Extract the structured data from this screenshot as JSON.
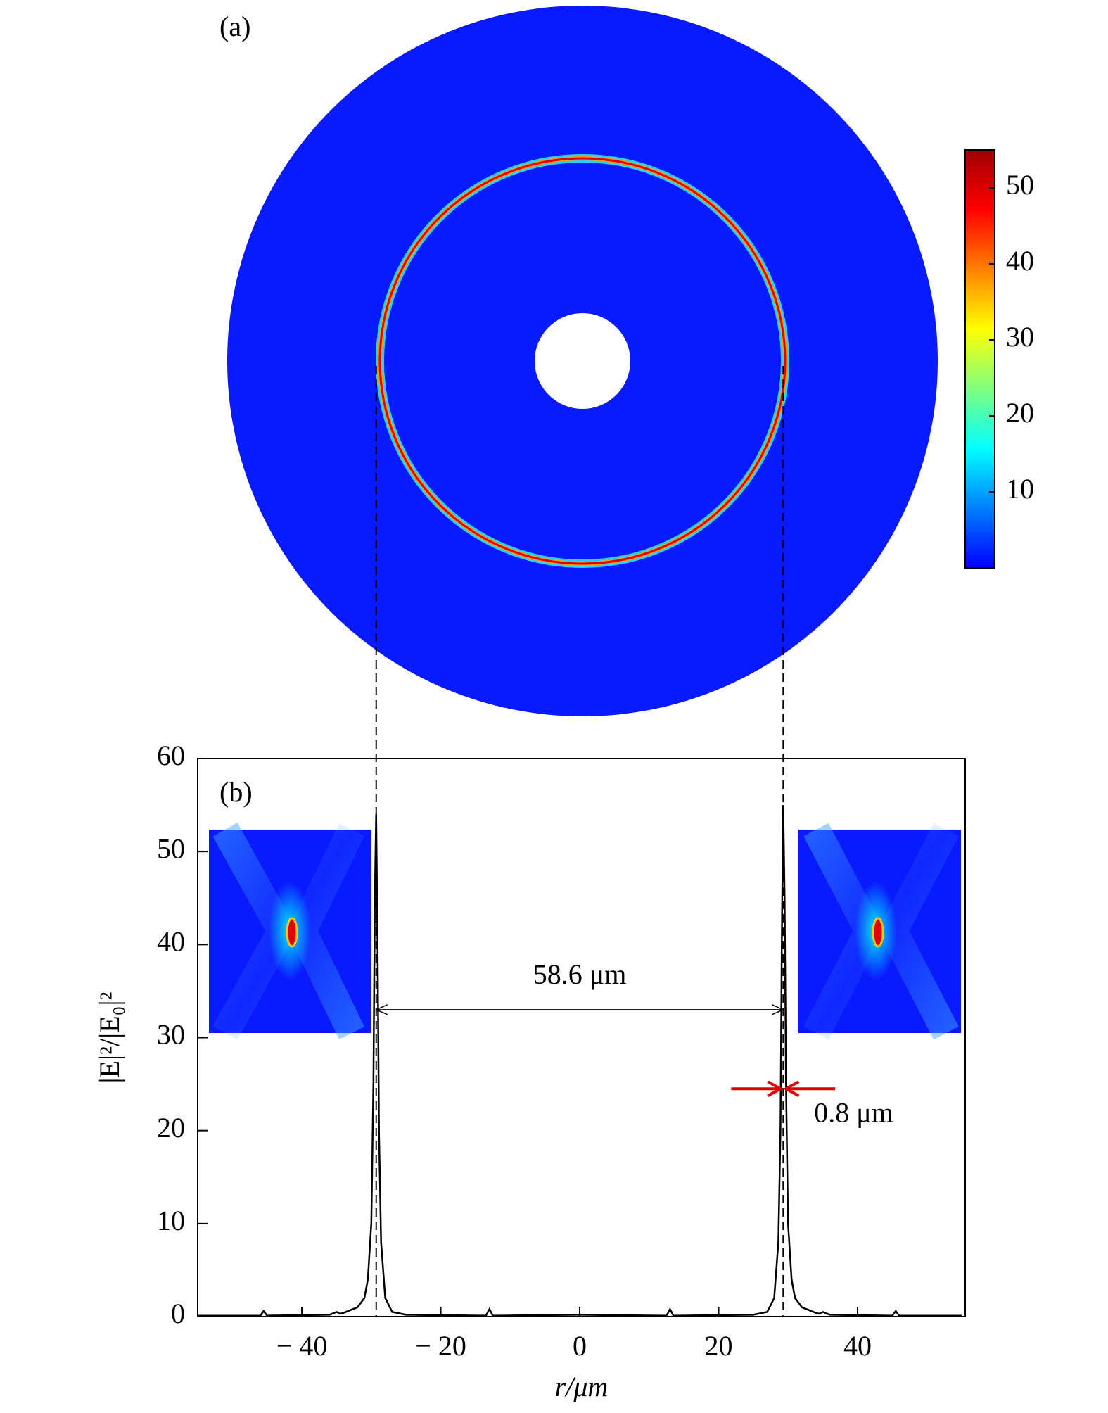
{
  "chart_data": [
    {
      "type": "colorbar",
      "title": "(a)",
      "colormap": [
        "#0000ff",
        "#0080ff",
        "#00ffff",
        "#80ff80",
        "#ffff00",
        "#ff8000",
        "#ff0000",
        "#a00000"
      ],
      "clim": [
        0,
        55
      ],
      "yticks": [
        10,
        20,
        30,
        40,
        50
      ]
    },
    {
      "type": "line",
      "title": "(b)",
      "xlabel": "r/μm",
      "ylabel": "|E|²/|E₀|²",
      "color": "#000000",
      "x": [
        -55,
        -46,
        -45.5,
        -45,
        -36,
        -35,
        -34.5,
        -34,
        -32,
        -31,
        -30.5,
        -30,
        -29.7,
        -29.5,
        -29.3,
        -29.1,
        -28.9,
        -28.6,
        -28,
        -27,
        -25,
        -13.5,
        -13,
        -12.5,
        0,
        12.5,
        13,
        13.5,
        25,
        27,
        28,
        28.6,
        28.9,
        29.1,
        29.3,
        29.5,
        29.7,
        30,
        30.5,
        31,
        32,
        34,
        34.5,
        35,
        36,
        45,
        45.5,
        46,
        55
      ],
      "values": [
        0.1,
        0.1,
        0.6,
        0.1,
        0.2,
        0.5,
        0.3,
        0.4,
        1,
        2,
        4,
        10,
        25,
        45,
        54,
        40,
        20,
        8,
        2,
        0.5,
        0.2,
        0.1,
        0.8,
        0.1,
        0.2,
        0.1,
        0.8,
        0.1,
        0.2,
        0.5,
        2,
        8,
        20,
        40,
        55,
        45,
        25,
        10,
        4,
        2,
        1,
        0.4,
        0.3,
        0.5,
        0.2,
        0.1,
        0.6,
        0.1,
        0.1
      ],
      "xlim": [
        -55,
        55.5
      ],
      "ylim": [
        0,
        60
      ],
      "xticks": [
        -40,
        -20,
        0,
        20,
        40
      ],
      "yticks": [
        0,
        10,
        20,
        30,
        40,
        50,
        60
      ],
      "spacing": {
        "label": "58.6 μm",
        "from": -29.3,
        "to": 29.3,
        "y": 33
      },
      "width": {
        "label": "0.8 μm",
        "from": 28.9,
        "to": 29.7,
        "y": 24.5,
        "color": "#e00000"
      }
    }
  ]
}
